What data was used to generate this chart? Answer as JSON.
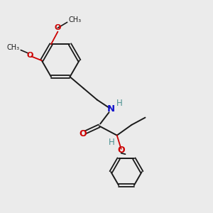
{
  "background_color": "#ebebeb",
  "bond_color": "#1a1a1a",
  "N_color": "#1414cc",
  "O_color": "#cc0000",
  "H_color": "#4a9090",
  "fig_size": [
    3.0,
    3.0
  ],
  "dpi": 100,
  "xlim": [
    0,
    10
  ],
  "ylim": [
    0,
    10
  ]
}
